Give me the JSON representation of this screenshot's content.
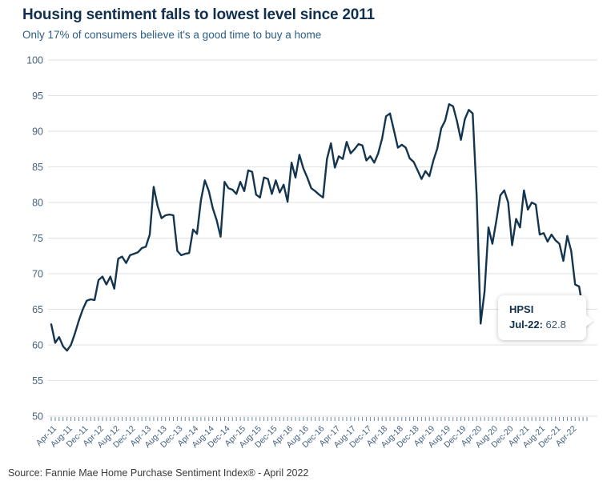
{
  "header": {
    "title": "Housing sentiment falls to lowest level since 2011",
    "subtitle": "Only 17% of consumers believe it's a good time to buy a home"
  },
  "source": {
    "text": "Source: Fannie Mae Home Purchase Sentiment Index® - April 2022"
  },
  "tooltip": {
    "series": "HPSI",
    "label": "Jul-22:",
    "value": "62.8"
  },
  "colors": {
    "line": "#14354f",
    "title": "#12304e",
    "subtitle": "#2c5d84",
    "axis_label": "#44617e",
    "gridline": "#e2e2e2",
    "tick": "#6b89a5",
    "source": "#3a3a3a",
    "tooltip_text": "#12304e"
  },
  "chart_data": {
    "type": "line",
    "title": "Housing sentiment falls to lowest level since 2011",
    "subtitle": "Only 17% of consumers believe it's a good time to buy a home",
    "series_name": "HPSI",
    "frequency": "monthly",
    "x_start": "Mar-11",
    "x_end": "Jul-22",
    "xlabel": "",
    "ylabel": "",
    "ylim": [
      50,
      100
    ],
    "y_ticks": [
      50,
      55,
      60,
      65,
      70,
      75,
      80,
      85,
      90,
      95,
      100
    ],
    "grid": true,
    "legend_position": "none",
    "x_tick_labels": [
      "Apr-11",
      "Aug-11",
      "Dec-11",
      "Apr-12",
      "Aug-12",
      "Dec-12",
      "Apr-13",
      "Aug-13",
      "Dec-13",
      "Apr-14",
      "Aug-14",
      "Dec-14",
      "Apr-15",
      "Aug-15",
      "Dec-15",
      "Apr-16",
      "Aug-16",
      "Dec-16",
      "Apr-17",
      "Aug-17",
      "Dec-17",
      "Apr-18",
      "Aug-18",
      "Dec-18",
      "Apr-19",
      "Aug-19",
      "Dec-19",
      "Apr-20",
      "Aug-20",
      "Dec-20",
      "Apr-21",
      "Aug-21",
      "Dec-21",
      "Apr-22"
    ],
    "x_tick_month_offsets": [
      1,
      5,
      9,
      13,
      17,
      21,
      25,
      29,
      33,
      37,
      41,
      45,
      49,
      53,
      57,
      61,
      65,
      69,
      73,
      77,
      81,
      85,
      89,
      93,
      97,
      101,
      105,
      109,
      113,
      117,
      121,
      125,
      129,
      133
    ],
    "values": [
      62.9,
      60.3,
      61.1,
      59.8,
      59.2,
      60.0,
      61.6,
      63.4,
      65.0,
      66.2,
      66.4,
      66.3,
      69.1,
      69.6,
      68.5,
      69.6,
      67.9,
      72.1,
      72.4,
      71.5,
      72.6,
      72.8,
      73.0,
      73.6,
      73.8,
      75.5,
      82.2,
      79.5,
      77.8,
      78.2,
      78.3,
      78.2,
      73.2,
      72.6,
      72.8,
      72.9,
      76.2,
      75.6,
      80.3,
      83.1,
      81.6,
      79.2,
      77.5,
      75.2,
      82.9,
      82.0,
      81.8,
      81.2,
      82.9,
      81.6,
      84.5,
      84.3,
      81.1,
      80.7,
      83.5,
      83.3,
      81.2,
      83.1,
      81.4,
      82.5,
      80.1,
      85.6,
      83.5,
      86.7,
      84.8,
      83.5,
      82.0,
      81.6,
      81.1,
      80.7,
      86.1,
      88.3,
      84.9,
      86.5,
      86.1,
      88.5,
      86.9,
      87.5,
      88.2,
      88.0,
      85.9,
      86.5,
      85.6,
      86.9,
      89.0,
      92.1,
      92.5,
      90.1,
      87.7,
      88.1,
      87.7,
      86.2,
      85.7,
      84.5,
      83.3,
      84.4,
      83.7,
      85.9,
      87.6,
      90.4,
      91.5,
      93.8,
      93.5,
      91.4,
      88.8,
      91.7,
      93.0,
      92.5,
      80.8,
      63.0,
      67.5,
      76.5,
      74.2,
      77.5,
      81.0,
      81.7,
      80.0,
      74.0,
      77.7,
      76.5,
      81.7,
      79.0,
      80.0,
      79.7,
      75.5,
      75.7,
      74.5,
      75.5,
      74.7,
      74.2,
      71.8,
      75.3,
      73.2,
      68.5,
      68.2,
      64.8,
      62.8
    ],
    "highlight_last_point": {
      "label": "Jul-22",
      "value": 62.8
    }
  }
}
